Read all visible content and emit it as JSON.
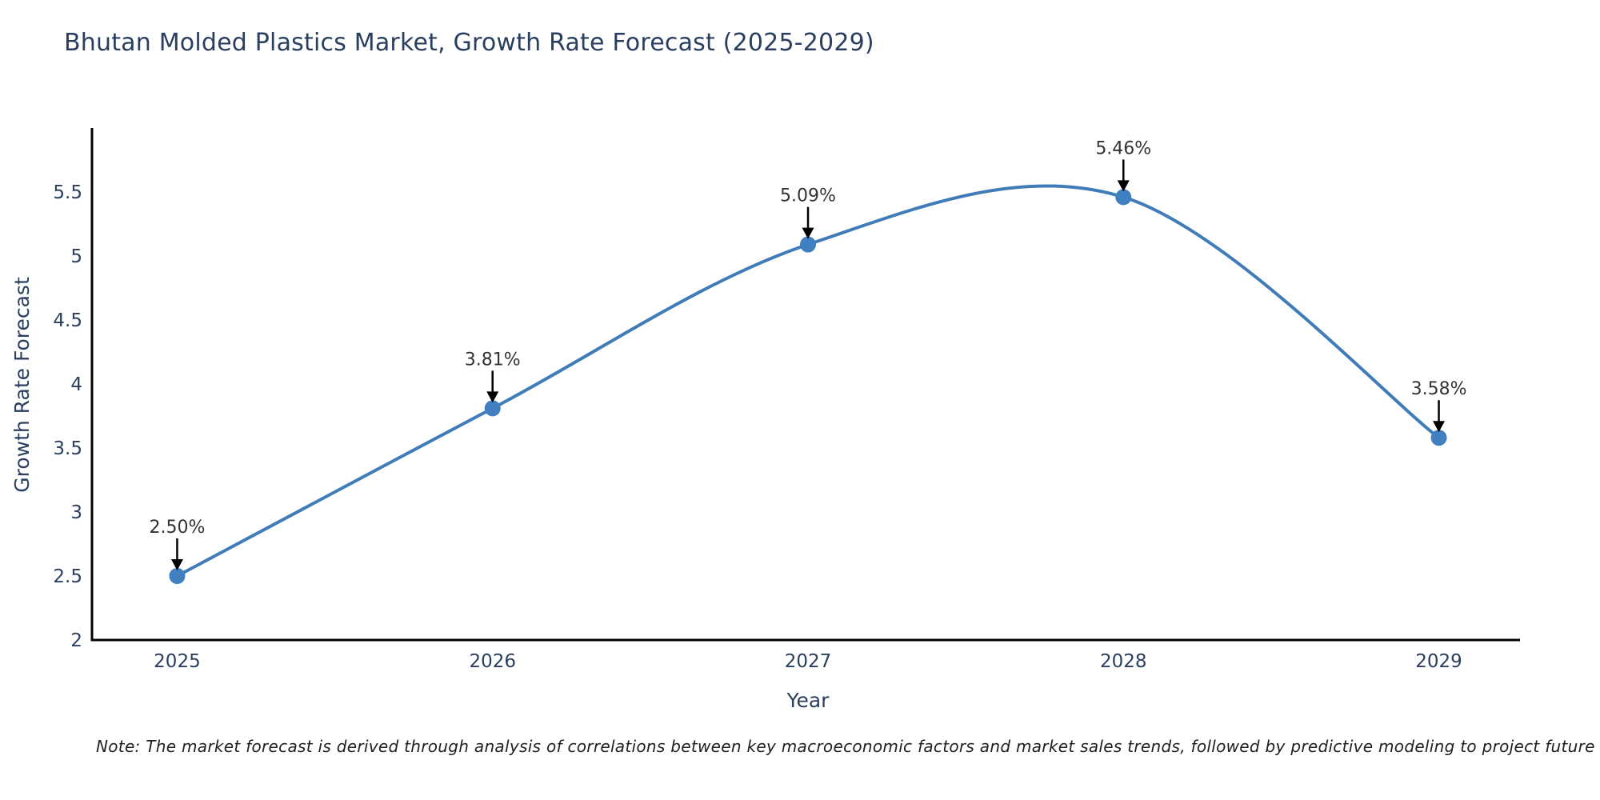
{
  "chart_data": {
    "type": "line",
    "line_shape": "spline",
    "title": "Bhutan Molded Plastics Market, Growth Rate Forecast (2025-2029)",
    "xlabel": "Year",
    "ylabel": "Growth Rate Forecast",
    "x": [
      2025,
      2026,
      2027,
      2028,
      2029
    ],
    "values": [
      2.5,
      3.81,
      5.09,
      5.46,
      3.58
    ],
    "point_labels": [
      "2.50%",
      "3.81%",
      "5.09%",
      "5.46%",
      "3.58%"
    ],
    "xtick_labels": [
      "2025",
      "2026",
      "2027",
      "2028",
      "2029"
    ],
    "yticks": [
      2,
      2.5,
      3,
      3.5,
      4,
      4.5,
      5,
      5.5
    ],
    "ytick_labels": [
      "2",
      "2.5",
      "3",
      "3.5",
      "4",
      "4.5",
      "5",
      "5.5"
    ],
    "xlim": [
      2024.73,
      2029.27
    ],
    "ylim": [
      2,
      6
    ],
    "grid": false,
    "legend": "none",
    "colors": {
      "line": "#3f7cb8",
      "marker": "#4080c0",
      "axis_line": "#000000",
      "title_text": "#2a3f5f",
      "axis_title_text": "#2a3f5f",
      "tick_text": "#2a3f5f",
      "annotation_text": "#333333",
      "annotation_arrow": "#000000",
      "note_text": "#1f1f1f",
      "background": "#ffffff"
    }
  },
  "note": {
    "text": "Note: The market forecast is derived through analysis of correlations between key macroeconomic factors and market sales trends, followed by predictive modeling to project future sales"
  }
}
